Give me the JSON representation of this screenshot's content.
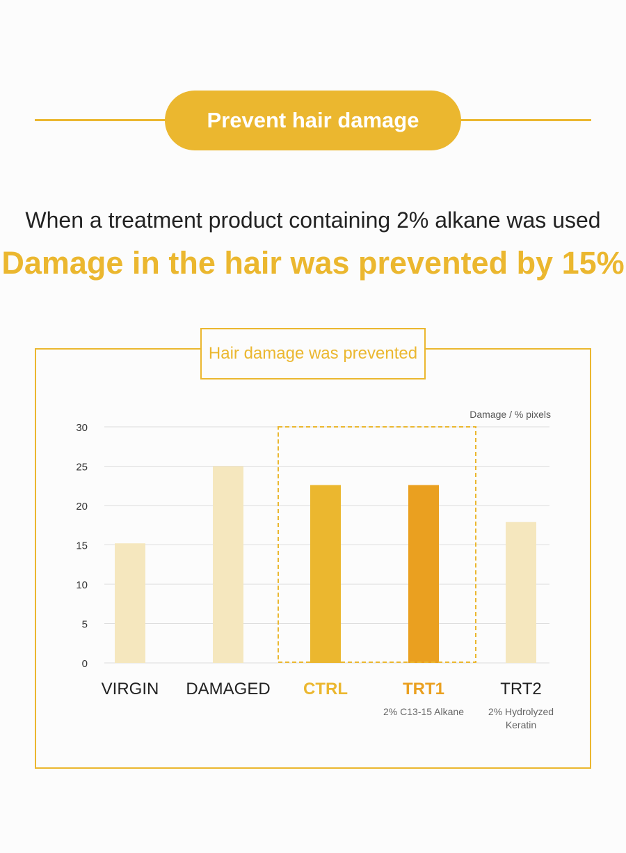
{
  "header": {
    "title": "Prevent hair damage"
  },
  "intro": "When a treatment product containing 2% alkane was used",
  "headline": "Damage in the hair was prevented by 15%",
  "chart_title": "Hair damage was prevented",
  "colors": {
    "accent": "#ebb72f",
    "highlight_bar": "#ebb72f",
    "trt1_bar": "#eaa020",
    "muted_bar": "#f5e7be",
    "grid": "#dddddd",
    "tick_text": "#333333",
    "label_text": "#222222",
    "sublabel_text": "#666666"
  },
  "chart_data": {
    "type": "bar",
    "title": "Hair damage was prevented",
    "ylabel": "Damage / % pixels",
    "xlabel": "",
    "ylim": [
      0,
      30
    ],
    "yticks": [
      0,
      5,
      10,
      15,
      20,
      25,
      30
    ],
    "grid": true,
    "categories": [
      "VIRGIN",
      "DAMAGED",
      "CTRL",
      "TRT1",
      "TRT2"
    ],
    "sublabels": [
      "",
      "",
      "",
      "2% C13-15 Alkane",
      "2% Hydrolyzed Keratin"
    ],
    "values": [
      15.2,
      25,
      22.6,
      22.6,
      17.9
    ],
    "highlighted": [
      "CTRL",
      "TRT1"
    ]
  }
}
